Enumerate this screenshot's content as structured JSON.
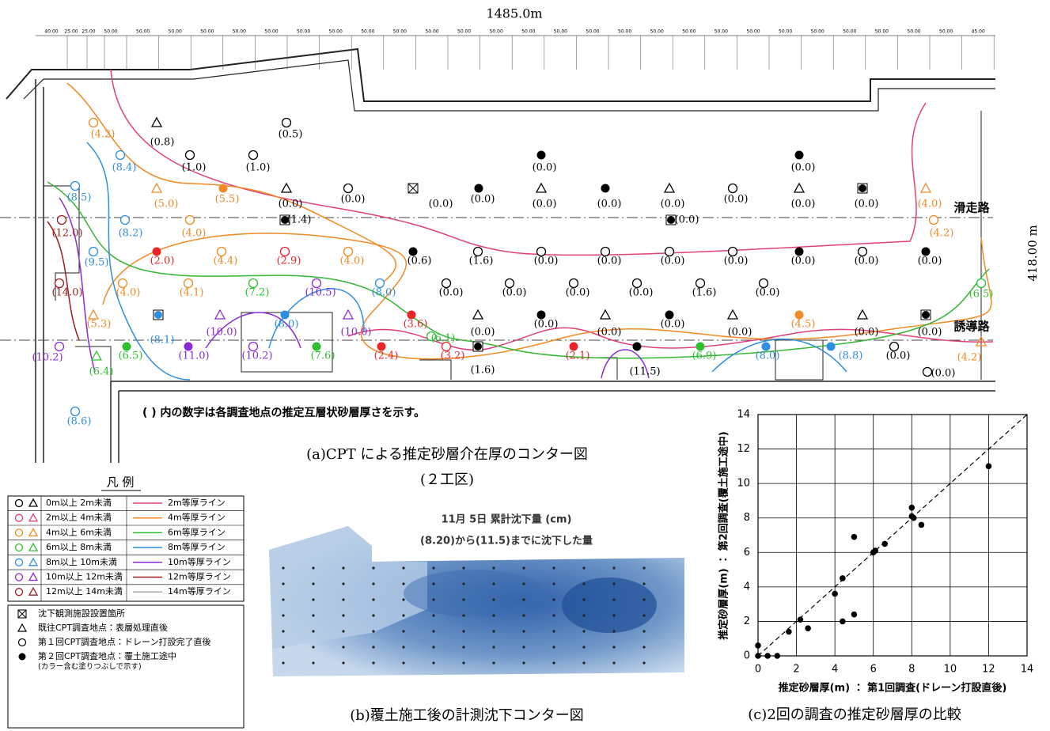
{
  "map": {
    "length_label": "1485.0m",
    "width_label": "418.00 m",
    "ruler": [
      "40.00",
      "25.00",
      "25.00",
      "50.00",
      "50.00",
      "50.00",
      "50.00",
      "50.00",
      "50.00",
      "50.00",
      "50.00",
      "50.00",
      "50.00",
      "50.00",
      "50.00",
      "50.00",
      "50.00",
      "50.00",
      "50.00",
      "50.00",
      "50.00",
      "50.00",
      "50.00",
      "50.00",
      "50.00",
      "50.00",
      "50.00",
      "50.00",
      "50.00",
      "50.00",
      "45.00"
    ],
    "runway": "滑走路",
    "taxiway": "誘導路",
    "points": [
      "(4.2)",
      "(0.8)",
      "(0.5)",
      "(1.0)",
      "(1.0)",
      "(8.4)",
      "(0.0)",
      "(0.0)",
      "(8.5)",
      "(5.0)",
      "(5.5)",
      "(0.0)",
      "(0.0)",
      "(0.0)",
      "(0.0)",
      "(0.0)",
      "(0.0)",
      "(0.0)",
      "(0.0)",
      "(0.0)",
      "(0.0)",
      "(4.0)",
      "(12.0)",
      "(8.2)",
      "(4.0)",
      "(1.4)",
      "(0.0)",
      "(4.2)",
      "(9.5)",
      "(2.0)",
      "(4.4)",
      "(2.9)",
      "(4.0)",
      "(0.6)",
      "(1.6)",
      "(0.0)",
      "(0.0)",
      "(0.0)",
      "(0.0)",
      "(0.0)",
      "(0.0)",
      "(0.0)",
      "(14.0)",
      "(4.0)",
      "(4.1)",
      "(7.2)",
      "(10.5)",
      "(8.0)",
      "(0.0)",
      "(0.0)",
      "(0.0)",
      "(0.0)",
      "(1.6)",
      "(0.0)",
      "(6.5)",
      "(5.3)",
      "(8.1)",
      "(10.0)",
      "(8.0)",
      "(10.0)",
      "(3.6)",
      "(0.0)",
      "(0.0)",
      "(0.0)",
      "(0.0)",
      "(0.0)",
      "(4.5)",
      "(0.0)",
      "(0.0)",
      "(10.2)",
      "(6.4)",
      "(6.5)",
      "(11.0)",
      "(10.2)",
      "(7.6)",
      "(2.4)",
      "(3.2)",
      "(1.6)",
      "(2.1)",
      "(11.5)",
      "(6.9)",
      "(8.0)",
      "(8.8)",
      "(0.0)",
      "(4.2)",
      "(0.0)",
      "(8.6)",
      "(6.1)"
    ],
    "note": "( ) 内の数字は各調査地点の推定互層状砂層厚さを示す。",
    "caption": "(a)CPT による推定砂層介在厚のコンター図",
    "subcaption": "(２工区)"
  },
  "legend": {
    "title": "凡 例",
    "rows": [
      {
        "range": "0m以上 2m未満",
        "line": "2m等厚ライン"
      },
      {
        "range": "2m以上 4m未満",
        "line": "4m等厚ライン"
      },
      {
        "range": "4m以上 6m未満",
        "line": "6m等厚ライン"
      },
      {
        "range": "6m以上 8m未満",
        "line": "8m等厚ライン"
      },
      {
        "range": "8m以上 10m未満",
        "line": "10m等厚ライン"
      },
      {
        "range": "10m以上 12m未満",
        "line": "12m等厚ライン"
      },
      {
        "range": "12m以上 14m未満",
        "line": "14m等厚ライン"
      }
    ],
    "items": [
      "沈下観測施設設置箇所",
      "既往CPT調査地点：表層処理直後",
      "第１回CPT調査地点：ドレーン打設完了直後",
      "第２回CPT調査地点：覆土施工途中",
      "(カラー含む塗りつぶしで示す)"
    ]
  },
  "settlement": {
    "title": "11月 5日 累計沈下量 (cm)",
    "subtitle": "(8.20)から(11.5)までに沈下した量",
    "caption": "(b)覆土施工後の計測沈下コンター図"
  },
  "chart_data": {
    "type": "scatter",
    "caption": "(c)2回の調査の推定砂層厚の比較",
    "x_label": "推定砂層厚(m) ： 第1回調査(ドレーン打設直後)",
    "y_label": "推定砂層厚(m) ： 第2回調査(覆土施工途中)",
    "xlim": [
      0,
      14
    ],
    "ylim": [
      0,
      14
    ],
    "xticks": [
      0,
      2,
      4,
      6,
      8,
      10,
      12,
      14
    ],
    "yticks": [
      0,
      2,
      4,
      6,
      8,
      10,
      12,
      14
    ],
    "grid": true,
    "color": "#000000",
    "x": [
      0,
      0,
      0.5,
      1,
      1.6,
      2.2,
      2.6,
      4,
      4.4,
      4.4,
      5,
      5,
      6,
      6.1,
      6.6,
      8,
      8,
      8.1,
      8.5,
      12
    ],
    "y": [
      0,
      0.6,
      0,
      0,
      1.4,
      2.1,
      1.6,
      3.6,
      4.5,
      2.0,
      2.4,
      6.9,
      6.0,
      6.1,
      6.5,
      8.1,
      8.6,
      8.0,
      7.6,
      11
    ]
  }
}
